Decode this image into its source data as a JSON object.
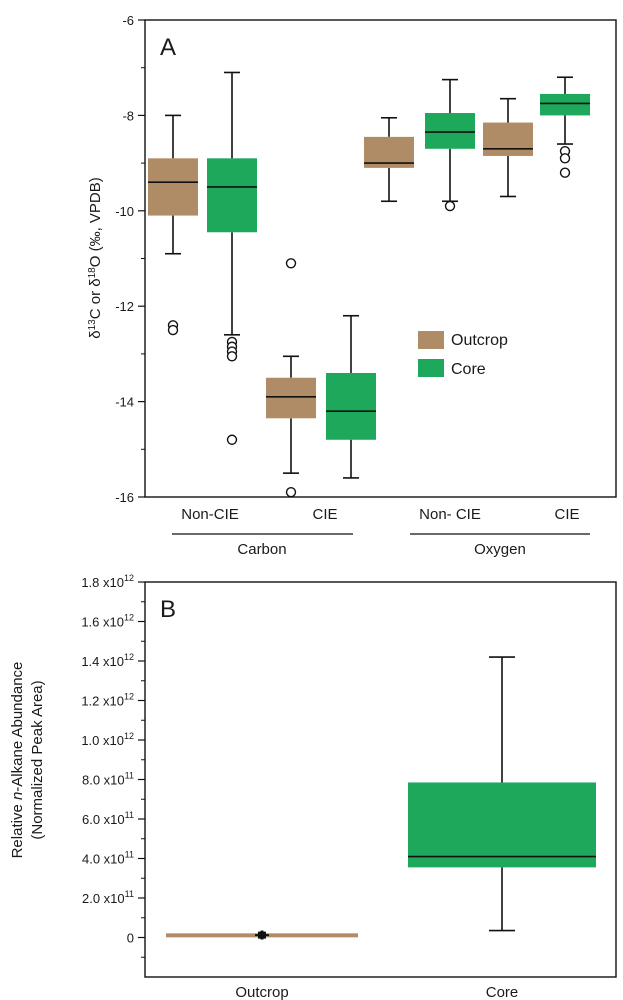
{
  "colors": {
    "outcrop": "#b08c66",
    "core": "#1ea85c",
    "line": "#111111"
  },
  "chart_data": [
    {
      "type": "box",
      "panel_label": "A",
      "ylabel_parts": [
        "δ",
        "13",
        "C or δ",
        "18",
        "O (‰, VPDB)"
      ],
      "ylim": [
        -16,
        -6
      ],
      "yticks": [
        -6,
        -8,
        -10,
        -12,
        -14,
        -16
      ],
      "categories": [
        "Non-CIE",
        "CIE",
        "Non- CIE",
        "CIE"
      ],
      "groups": [
        "Carbon",
        "Oxygen"
      ],
      "legend": {
        "position": "center-right",
        "entries": [
          "Outcrop",
          "Core"
        ]
      },
      "series": [
        {
          "name": "Outcrop",
          "color_key": "outcrop",
          "boxes": [
            {
              "category": "Non-CIE",
              "group": "Carbon",
              "whisker_low": -10.9,
              "q1": -10.1,
              "median": -9.4,
              "q3": -8.9,
              "whisker_high": -8.0,
              "outliers": [
                -12.4,
                -12.5
              ]
            },
            {
              "category": "CIE",
              "group": "Carbon",
              "whisker_low": -15.5,
              "q1": -14.35,
              "median": -13.9,
              "q3": -13.5,
              "whisker_high": -13.05,
              "outliers": [
                -11.1,
                -15.9
              ]
            },
            {
              "category": "Non- CIE",
              "group": "Oxygen",
              "whisker_low": -9.8,
              "q1": -9.1,
              "median": -9.0,
              "q3": -8.45,
              "whisker_high": -8.05,
              "outliers": []
            },
            {
              "category": "CIE",
              "group": "Oxygen",
              "whisker_low": -9.7,
              "q1": -8.85,
              "median": -8.7,
              "q3": -8.15,
              "whisker_high": -7.65,
              "outliers": []
            }
          ]
        },
        {
          "name": "Core",
          "color_key": "core",
          "boxes": [
            {
              "category": "Non-CIE",
              "group": "Carbon",
              "whisker_low": -12.6,
              "q1": -10.45,
              "median": -9.5,
              "q3": -8.9,
              "whisker_high": -7.1,
              "outliers": [
                -12.75,
                -12.85,
                -12.95,
                -13.05,
                -14.8
              ]
            },
            {
              "category": "CIE",
              "group": "Carbon",
              "whisker_low": -15.6,
              "q1": -14.8,
              "median": -14.2,
              "q3": -13.4,
              "whisker_high": -12.2,
              "outliers": []
            },
            {
              "category": "Non- CIE",
              "group": "Oxygen",
              "whisker_low": -9.8,
              "q1": -8.7,
              "median": -8.35,
              "q3": -7.95,
              "whisker_high": -7.25,
              "outliers": [
                -9.9
              ]
            },
            {
              "category": "CIE",
              "group": "Oxygen",
              "whisker_low": -8.6,
              "q1": -8.0,
              "median": -7.75,
              "q3": -7.55,
              "whisker_high": -7.2,
              "outliers": [
                -8.75,
                -8.9,
                -9.2
              ]
            }
          ]
        }
      ]
    },
    {
      "type": "box",
      "panel_label": "B",
      "ylabel_parts": [
        "Relative ",
        "n",
        "-Alkane Abundance"
      ],
      "ylabel2": "(Normalized Peak Area)",
      "ylim": [
        -200000000000.0,
        1800000000000.0
      ],
      "yticks": [
        {
          "value": 0,
          "mant": "0",
          "exp": ""
        },
        {
          "value": 200000000000.0,
          "mant": "2.0 x10",
          "exp": "11"
        },
        {
          "value": 400000000000.0,
          "mant": "4.0 x10",
          "exp": "11"
        },
        {
          "value": 600000000000.0,
          "mant": "6.0 x10",
          "exp": "11"
        },
        {
          "value": 800000000000.0,
          "mant": "8.0 x10",
          "exp": "11"
        },
        {
          "value": 1000000000000.0,
          "mant": "1.0 x10",
          "exp": "12"
        },
        {
          "value": 1200000000000.0,
          "mant": "1.2 x10",
          "exp": "12"
        },
        {
          "value": 1400000000000.0,
          "mant": "1.4 x10",
          "exp": "12"
        },
        {
          "value": 1600000000000.0,
          "mant": "1.6 x10",
          "exp": "12"
        },
        {
          "value": 1800000000000.0,
          "mant": "1.8 x10",
          "exp": "12"
        }
      ],
      "categories": [
        "Outcrop",
        "Core"
      ],
      "boxes": [
        {
          "category": "Outcrop",
          "color_key": "outcrop",
          "whisker_low": 5000000000.0,
          "q1": 8000000000.0,
          "median": 12000000000.0,
          "q3": 16000000000.0,
          "whisker_high": 20000000000.0
        },
        {
          "category": "Core",
          "color_key": "core",
          "whisker_low": 35000000000.0,
          "q1": 355000000000.0,
          "median": 410000000000.0,
          "q3": 785000000000.0,
          "whisker_high": 1420000000000.0
        }
      ]
    }
  ]
}
